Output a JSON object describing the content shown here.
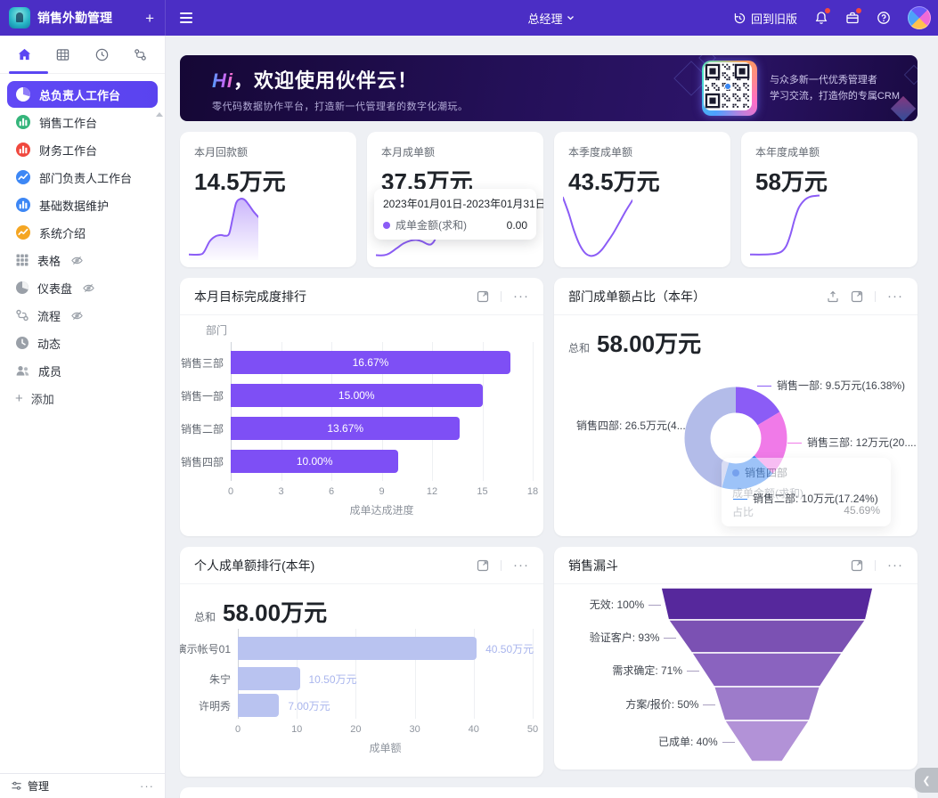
{
  "topbar": {
    "app_title": "销售外勤管理",
    "add_icon": "+",
    "role": "总经理",
    "back_to_old_label": "回到旧版"
  },
  "sidebar": {
    "menu": [
      {
        "label": "总负责人工作台",
        "icon": "pie",
        "color": "#ffffff",
        "active": true
      },
      {
        "label": "销售工作台",
        "icon": "bars",
        "color": "#35b57b"
      },
      {
        "label": "财务工作台",
        "icon": "bars",
        "color": "#f0483e"
      },
      {
        "label": "部门负责人工作台",
        "icon": "line",
        "color": "#3d87f5"
      },
      {
        "label": "基础数据维护",
        "icon": "bars",
        "color": "#3d87f5"
      },
      {
        "label": "系统介绍",
        "icon": "line",
        "color": "#f5a623"
      },
      {
        "label": "表格",
        "icon": "table",
        "hidden": true
      },
      {
        "label": "仪表盘",
        "icon": "gauge",
        "hidden": true
      },
      {
        "label": "流程",
        "icon": "flow",
        "hidden": true
      },
      {
        "label": "动态",
        "icon": "clock"
      },
      {
        "label": "成员",
        "icon": "members"
      }
    ],
    "add_label": "添加",
    "manage_label": "管理",
    "more_icon": "···"
  },
  "banner": {
    "title_hi": "Hi",
    "title_rest": "，欢迎使用伙伴云！",
    "subtitle": "零代码数据协作平台，打造新一代管理者的数字化潮玩。",
    "qr_caption_line1": "与众多新一代优秀管理者",
    "qr_caption_line2": "学习交流，打造你的专属CRM"
  },
  "stat_cards": [
    {
      "label": "本月回款额",
      "value": "14.5万元",
      "spark": {
        "type": "area",
        "color": "#8b5cf6",
        "points": [
          [
            0,
            92
          ],
          [
            16,
            92
          ],
          [
            22,
            88
          ],
          [
            30,
            73
          ],
          [
            38,
            66
          ],
          [
            46,
            64
          ],
          [
            52,
            65
          ],
          [
            58,
            62
          ],
          [
            63,
            40
          ],
          [
            68,
            18
          ],
          [
            74,
            12
          ],
          [
            80,
            13
          ],
          [
            86,
            20
          ],
          [
            93,
            30
          ],
          [
            100,
            38
          ]
        ]
      }
    },
    {
      "label": "本月成单额",
      "value": "37.5万元",
      "tooltip": {
        "date_range": "2023年01月01日-2023年01月31日",
        "series": "成单金额(求和)",
        "value": "0.00"
      },
      "spark": {
        "type": "line",
        "color": "#8b5cf6",
        "points": [
          [
            0,
            93
          ],
          [
            12,
            93
          ],
          [
            20,
            90
          ],
          [
            30,
            83
          ],
          [
            40,
            76
          ],
          [
            50,
            72
          ],
          [
            58,
            71
          ],
          [
            66,
            73
          ],
          [
            74,
            77
          ],
          [
            80,
            77
          ],
          [
            86,
            68
          ],
          [
            91,
            45
          ],
          [
            96,
            18
          ],
          [
            100,
            6
          ]
        ]
      }
    },
    {
      "label": "本季度成单额",
      "value": "43.5万元",
      "spark": {
        "type": "line",
        "color": "#8b5cf6",
        "points": [
          [
            0,
            10
          ],
          [
            8,
            32
          ],
          [
            16,
            58
          ],
          [
            24,
            78
          ],
          [
            32,
            90
          ],
          [
            40,
            94
          ],
          [
            48,
            92
          ],
          [
            56,
            85
          ],
          [
            64,
            74
          ],
          [
            72,
            62
          ],
          [
            80,
            48
          ],
          [
            90,
            30
          ],
          [
            100,
            14
          ]
        ]
      }
    },
    {
      "label": "本年度成单额",
      "value": "58万元",
      "spark": {
        "type": "line",
        "color": "#8b5cf6",
        "points": [
          [
            0,
            92
          ],
          [
            20,
            92
          ],
          [
            35,
            91
          ],
          [
            45,
            88
          ],
          [
            52,
            80
          ],
          [
            58,
            64
          ],
          [
            64,
            42
          ],
          [
            70,
            25
          ],
          [
            78,
            14
          ],
          [
            86,
            9
          ],
          [
            100,
            7
          ]
        ]
      }
    }
  ],
  "chart_data": [
    {
      "type": "bar",
      "title": "本月目标完成度排行",
      "ylabel": "部门",
      "xlabel": "成单达成进度",
      "xlim": [
        0,
        18
      ],
      "ticks": [
        0,
        3,
        6,
        9,
        12,
        15,
        18
      ],
      "categories": [
        "销售三部",
        "销售一部",
        "销售二部",
        "销售四部"
      ],
      "values": [
        16.67,
        15.0,
        13.67,
        10.0
      ],
      "value_labels": [
        "16.67%",
        "15.00%",
        "13.67%",
        "10.00%"
      ],
      "bar_color": "#7e4ff5",
      "label_style": "inside"
    },
    {
      "type": "pie",
      "title": "部门成单额占比（本年）",
      "total_label": "总和",
      "total_value": "58.00万元",
      "slices": [
        {
          "name": "销售一部",
          "value": 9.5,
          "pct": 16.38,
          "label": "销售一部: 9.5万元(16.38%)",
          "color": "#8b5cf6"
        },
        {
          "name": "销售三部",
          "value": 12,
          "pct": 20.69,
          "label": "销售三部: 12万元(20....",
          "color": "#f07ae8"
        },
        {
          "name": "销售二部",
          "value": 10,
          "pct": 17.24,
          "label": "销售二部: 10万元(17.24%)",
          "color": "#3a87f2"
        },
        {
          "name": "销售四部",
          "value": 26.5,
          "pct": 45.69,
          "label": "销售四部: 26.5万元(4...",
          "color": "#b3bce9"
        }
      ],
      "tooltip": {
        "name": "销售四部",
        "metric": "成单金额(求和)",
        "ratio_label": "占比",
        "ratio_value": "45.69%"
      }
    },
    {
      "type": "bar",
      "title": "个人成单额排行(本年)",
      "total_label": "总和",
      "total_value": "58.00万元",
      "xlabel": "成单额",
      "xlim": [
        0,
        50
      ],
      "ticks": [
        0,
        10,
        20,
        30,
        40,
        50
      ],
      "categories": [
        "演示帐号01",
        "朱宁",
        "许明秀"
      ],
      "values": [
        40.5,
        10.5,
        7.0
      ],
      "value_labels": [
        "40.50万元",
        "10.50万元",
        "7.00万元"
      ],
      "bar_color": "#b9c3f0",
      "label_style": "outside",
      "label_color": "#a9b5ed"
    },
    {
      "type": "funnel",
      "title": "销售漏斗",
      "stages": [
        {
          "label": "无效: 100%",
          "pct": 100,
          "color": "#56289c"
        },
        {
          "label": "验证客户: 93%",
          "pct": 93,
          "color": "#7b51b3"
        },
        {
          "label": "需求确定: 71%",
          "pct": 71,
          "color": "#8a63bf"
        },
        {
          "label": "方案/报价: 50%",
          "pct": 50,
          "color": "#9d7bca"
        },
        {
          "label": "已成单: 40%",
          "pct": 40,
          "color": "#b292d7"
        }
      ]
    }
  ],
  "misc": {
    "collapse_icon": "❮"
  }
}
